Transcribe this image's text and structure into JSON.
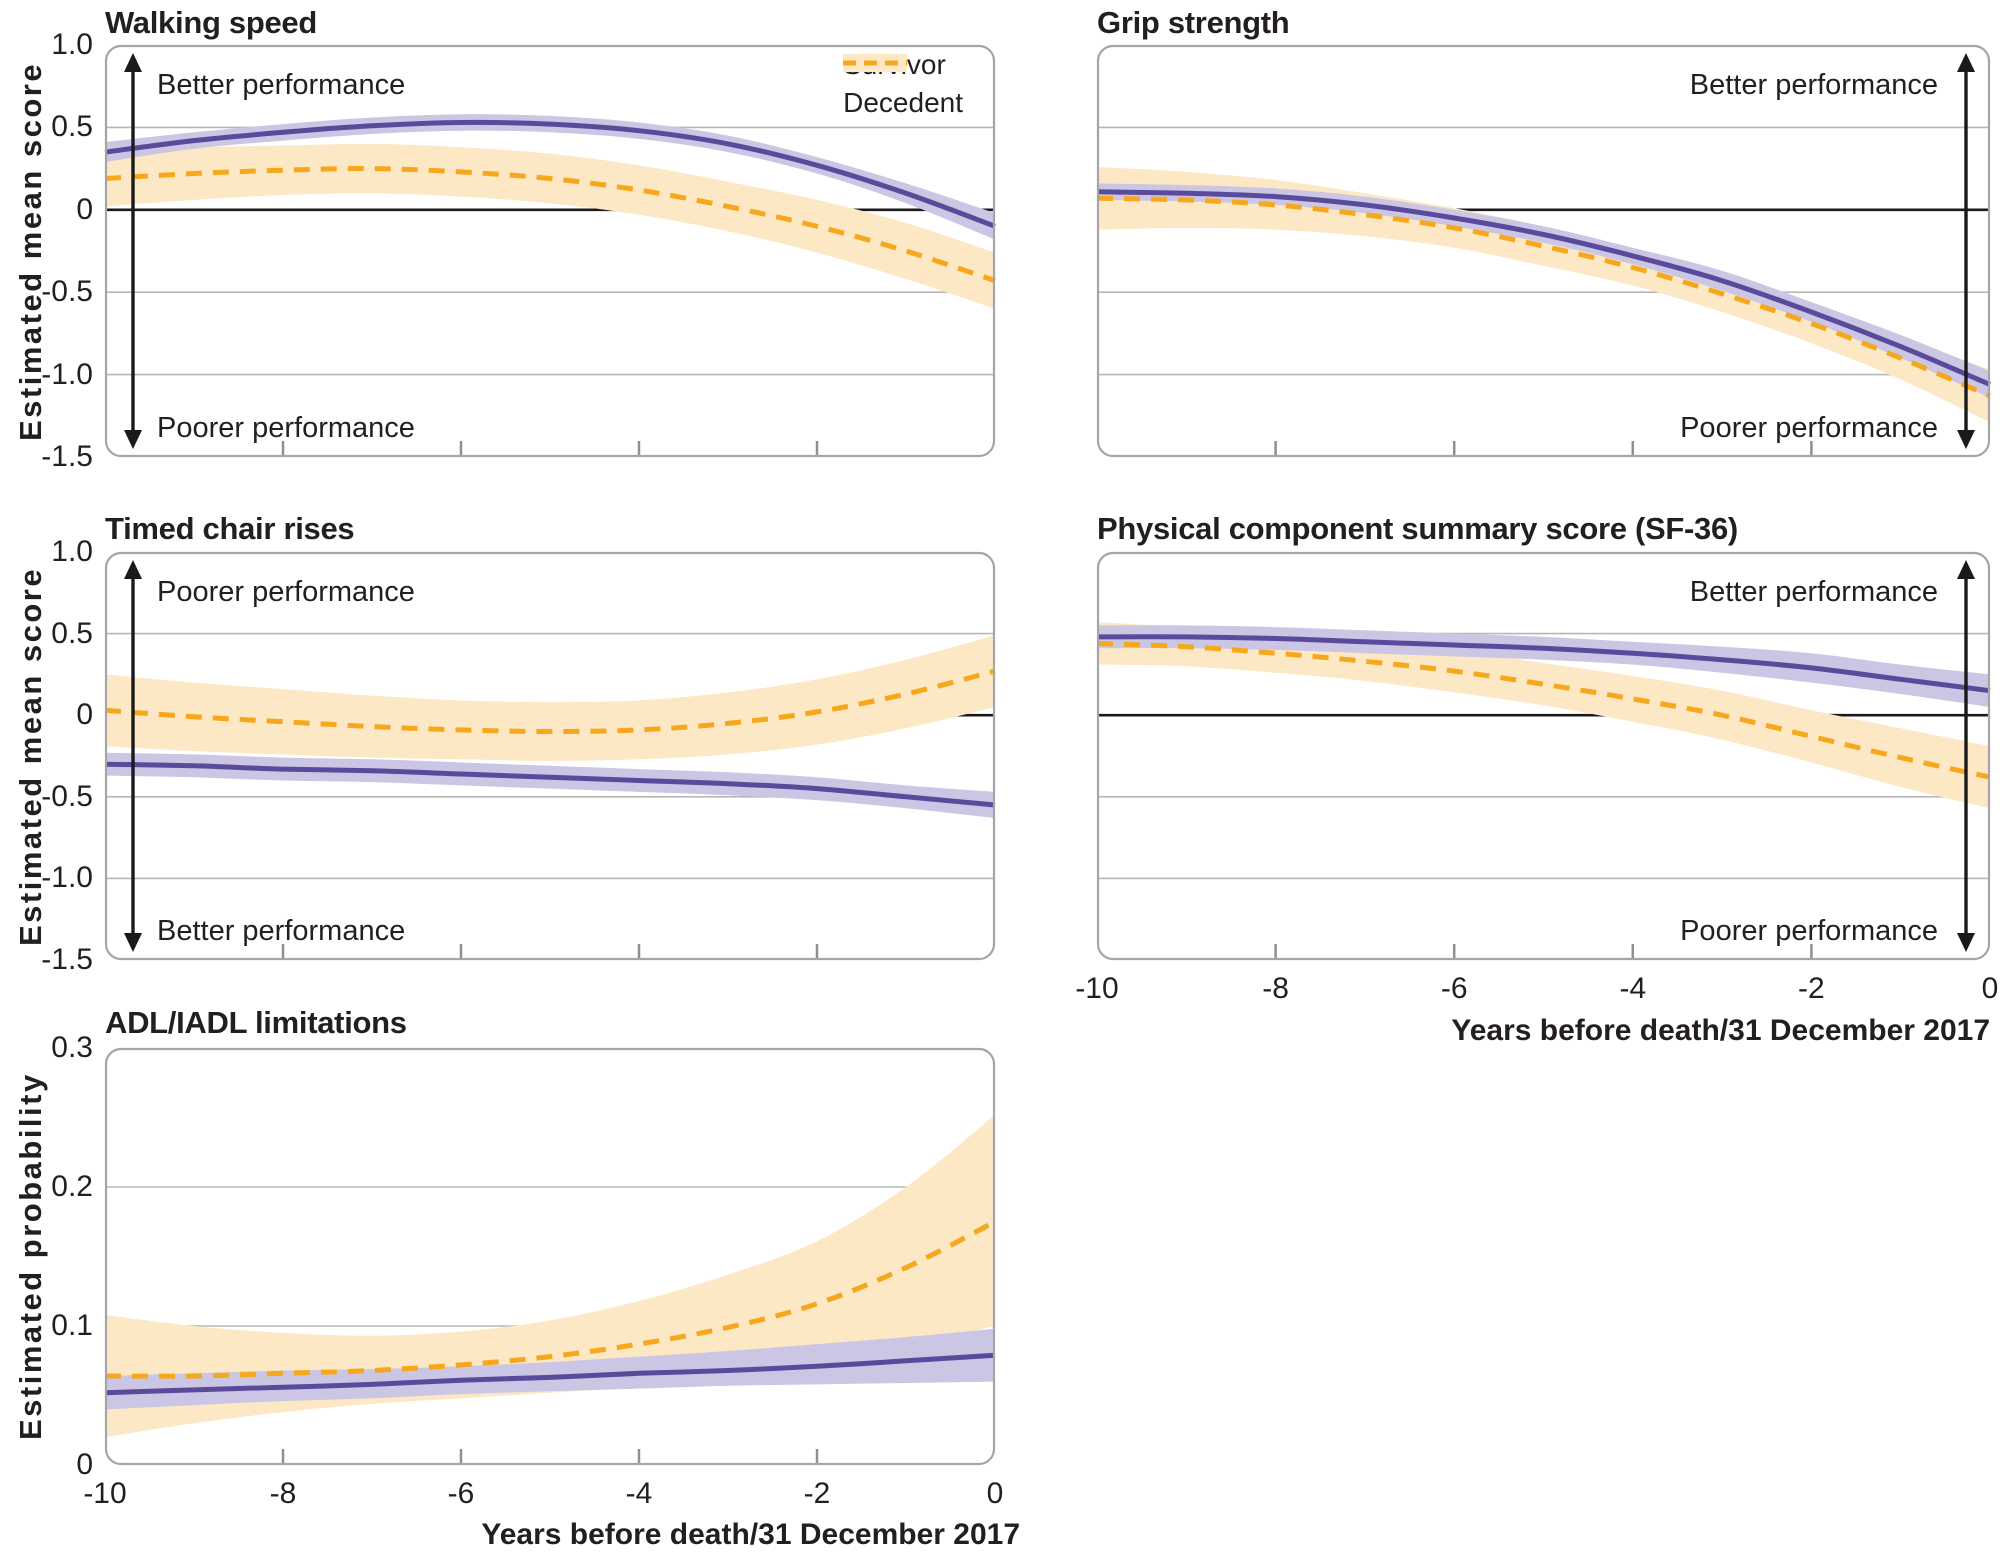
{
  "figure": {
    "x_axis_label": "Years before death/31 December 2017",
    "y_axis_label_mean_score": "Estimated mean score",
    "y_axis_label_probability": "Estimated probability"
  },
  "legend": {
    "survivor": "Survivor",
    "decedent": "Decedent"
  },
  "colors": {
    "survivor_line": "#5a4a9c",
    "survivor_band": "#cbc6e4",
    "decedent_line": "#f7a71c",
    "decedent_band": "#fce8c5",
    "gridline": "#b7b7b7",
    "zero_line": "#1a1a1a",
    "panel_border": "#a5a5a5",
    "tick": "#8f8f8f",
    "text": "#231f20"
  },
  "chart_data": [
    {
      "id": "walking-speed",
      "type": "line",
      "title": "Walking speed",
      "x": [
        -10,
        -9,
        -8,
        -7,
        -6,
        -5,
        -4,
        -3,
        -2,
        -1,
        0
      ],
      "xlim": [
        -10,
        0
      ],
      "ylim": [
        -1.5,
        1.0
      ],
      "x_ticks": [
        -10,
        -8,
        -6,
        -4,
        -2,
        0
      ],
      "x_tick_labels": [],
      "y_ticks": [
        {
          "v": 1.0,
          "label": "1.0"
        },
        {
          "v": 0.5,
          "label": "0.5"
        },
        {
          "v": 0,
          "label": "0"
        },
        {
          "v": -0.5,
          "label": "-0.5"
        },
        {
          "v": -1.0,
          "label": "-1.0"
        },
        {
          "v": -1.5,
          "label": "-1.5"
        }
      ],
      "y_gridlines": [
        0.5,
        -0.5,
        -1.0
      ],
      "zero_line": true,
      "annotation_top": "Better performance",
      "annotation_bottom": "Poorer performance",
      "arrow_side": "left",
      "series": [
        {
          "name": "Survivor",
          "line": "solid",
          "color_key": "survivor",
          "y": [
            0.35,
            0.42,
            0.47,
            0.51,
            0.53,
            0.52,
            0.48,
            0.4,
            0.27,
            0.1,
            -0.1
          ],
          "lo": [
            0.29,
            0.37,
            0.42,
            0.46,
            0.48,
            0.47,
            0.43,
            0.35,
            0.22,
            0.04,
            -0.18
          ],
          "hi": [
            0.41,
            0.47,
            0.52,
            0.56,
            0.58,
            0.57,
            0.53,
            0.45,
            0.32,
            0.16,
            -0.02
          ]
        },
        {
          "name": "Decedent",
          "line": "dashed",
          "color_key": "decedent",
          "y": [
            0.19,
            0.22,
            0.24,
            0.25,
            0.23,
            0.19,
            0.12,
            0.02,
            -0.1,
            -0.25,
            -0.43
          ],
          "lo": [
            0.02,
            0.06,
            0.09,
            0.1,
            0.08,
            0.04,
            -0.03,
            -0.13,
            -0.26,
            -0.42,
            -0.6
          ],
          "hi": [
            0.36,
            0.38,
            0.39,
            0.4,
            0.38,
            0.34,
            0.27,
            0.17,
            0.06,
            -0.08,
            -0.26
          ]
        }
      ]
    },
    {
      "id": "grip-strength",
      "type": "line",
      "title": "Grip strength",
      "x": [
        -10,
        -9,
        -8,
        -7,
        -6,
        -5,
        -4,
        -3,
        -2,
        -1,
        0
      ],
      "xlim": [
        -10,
        0
      ],
      "ylim": [
        -1.5,
        1.0
      ],
      "x_ticks": [
        -10,
        -8,
        -6,
        -4,
        -2,
        0
      ],
      "x_tick_labels": [],
      "y_ticks": [],
      "y_gridlines": [
        0.5,
        -0.5,
        -1.0
      ],
      "zero_line": true,
      "annotation_top": "Better performance",
      "annotation_bottom": "Poorer performance",
      "arrow_side": "right",
      "series": [
        {
          "name": "Survivor",
          "line": "solid",
          "color_key": "survivor",
          "y": [
            0.11,
            0.1,
            0.08,
            0.03,
            -0.05,
            -0.15,
            -0.28,
            -0.43,
            -0.62,
            -0.83,
            -1.06
          ],
          "lo": [
            0.06,
            0.05,
            0.03,
            -0.02,
            -0.1,
            -0.2,
            -0.33,
            -0.49,
            -0.68,
            -0.9,
            -1.14
          ],
          "hi": [
            0.16,
            0.15,
            0.13,
            0.08,
            0.0,
            -0.1,
            -0.23,
            -0.37,
            -0.56,
            -0.76,
            -0.98
          ]
        },
        {
          "name": "Decedent",
          "line": "dashed",
          "color_key": "decedent",
          "y": [
            0.07,
            0.06,
            0.03,
            -0.03,
            -0.11,
            -0.22,
            -0.35,
            -0.51,
            -0.69,
            -0.9,
            -1.13
          ],
          "lo": [
            -0.12,
            -0.11,
            -0.12,
            -0.16,
            -0.23,
            -0.34,
            -0.46,
            -0.62,
            -0.81,
            -1.03,
            -1.29
          ],
          "hi": [
            0.26,
            0.23,
            0.18,
            0.1,
            0.01,
            -0.1,
            -0.24,
            -0.4,
            -0.57,
            -0.77,
            -0.97
          ]
        }
      ]
    },
    {
      "id": "timed-chair-rises",
      "type": "line",
      "title": "Timed chair rises",
      "x": [
        -10,
        -9,
        -8,
        -7,
        -6,
        -5,
        -4,
        -3,
        -2,
        -1,
        0
      ],
      "xlim": [
        -10,
        0
      ],
      "ylim": [
        -1.5,
        1.0
      ],
      "x_ticks": [
        -10,
        -8,
        -6,
        -4,
        -2,
        0
      ],
      "x_tick_labels": [],
      "y_ticks": [
        {
          "v": 1.0,
          "label": "1.0"
        },
        {
          "v": 0.5,
          "label": "0.5"
        },
        {
          "v": 0,
          "label": "0"
        },
        {
          "v": -0.5,
          "label": "-0.5"
        },
        {
          "v": -1.0,
          "label": "-1.0"
        },
        {
          "v": -1.5,
          "label": "-1.5"
        }
      ],
      "y_gridlines": [
        0.5,
        -0.5,
        -1.0
      ],
      "zero_line": true,
      "annotation_top": "Poorer performance",
      "annotation_bottom": "Better performance",
      "arrow_side": "left",
      "series": [
        {
          "name": "Survivor",
          "line": "solid",
          "color_key": "survivor",
          "y": [
            -0.3,
            -0.31,
            -0.33,
            -0.34,
            -0.36,
            -0.38,
            -0.4,
            -0.42,
            -0.45,
            -0.5,
            -0.55
          ],
          "lo": [
            -0.37,
            -0.38,
            -0.4,
            -0.41,
            -0.43,
            -0.45,
            -0.47,
            -0.49,
            -0.52,
            -0.57,
            -0.63
          ],
          "hi": [
            -0.23,
            -0.24,
            -0.26,
            -0.27,
            -0.29,
            -0.31,
            -0.33,
            -0.35,
            -0.38,
            -0.43,
            -0.47
          ]
        },
        {
          "name": "Decedent",
          "line": "dashed",
          "color_key": "decedent",
          "y": [
            0.03,
            -0.01,
            -0.04,
            -0.07,
            -0.09,
            -0.1,
            -0.09,
            -0.05,
            0.02,
            0.13,
            0.27
          ],
          "lo": [
            -0.19,
            -0.22,
            -0.24,
            -0.26,
            -0.27,
            -0.28,
            -0.27,
            -0.24,
            -0.18,
            -0.08,
            0.05
          ],
          "hi": [
            0.25,
            0.2,
            0.16,
            0.12,
            0.09,
            0.08,
            0.09,
            0.14,
            0.22,
            0.34,
            0.49
          ]
        }
      ]
    },
    {
      "id": "physical-component-summary",
      "type": "line",
      "title": "Physical component summary score (SF-36)",
      "x": [
        -10,
        -9,
        -8,
        -7,
        -6,
        -5,
        -4,
        -3,
        -2,
        -1,
        0
      ],
      "xlim": [
        -10,
        0
      ],
      "ylim": [
        -1.5,
        1.0
      ],
      "x_ticks": [
        -10,
        -8,
        -6,
        -4,
        -2,
        0
      ],
      "x_tick_labels": [
        "-10",
        "-8",
        "-6",
        "-4",
        "-2",
        "0"
      ],
      "y_ticks": [],
      "y_gridlines": [
        0.5,
        -0.5,
        -1.0
      ],
      "zero_line": true,
      "annotation_top": "Better performance",
      "annotation_bottom": "Poorer performance",
      "arrow_side": "right",
      "show_x_label": true,
      "series": [
        {
          "name": "Survivor",
          "line": "solid",
          "color_key": "survivor",
          "y": [
            0.48,
            0.48,
            0.47,
            0.45,
            0.43,
            0.41,
            0.38,
            0.34,
            0.29,
            0.22,
            0.15
          ],
          "lo": [
            0.41,
            0.41,
            0.4,
            0.38,
            0.36,
            0.34,
            0.31,
            0.26,
            0.2,
            0.13,
            0.05
          ],
          "hi": [
            0.55,
            0.55,
            0.54,
            0.52,
            0.5,
            0.48,
            0.45,
            0.42,
            0.38,
            0.31,
            0.25
          ]
        },
        {
          "name": "Decedent",
          "line": "dashed",
          "color_key": "decedent",
          "y": [
            0.44,
            0.42,
            0.38,
            0.33,
            0.27,
            0.19,
            0.1,
            0.0,
            -0.13,
            -0.26,
            -0.38
          ],
          "lo": [
            0.31,
            0.3,
            0.26,
            0.21,
            0.14,
            0.06,
            -0.04,
            -0.15,
            -0.29,
            -0.44,
            -0.57
          ],
          "hi": [
            0.57,
            0.54,
            0.5,
            0.45,
            0.4,
            0.32,
            0.24,
            0.15,
            0.03,
            -0.08,
            -0.19
          ]
        }
      ]
    },
    {
      "id": "adl-iadl-limitations",
      "type": "line",
      "title": "ADL/IADL limitations",
      "x": [
        -10,
        -9,
        -8,
        -7,
        -6,
        -5,
        -4,
        -3,
        -2,
        -1,
        0
      ],
      "xlim": [
        -10,
        0
      ],
      "ylim": [
        0,
        0.3
      ],
      "x_ticks": [
        -10,
        -8,
        -6,
        -4,
        -2,
        0
      ],
      "x_tick_labels": [
        "-10",
        "-8",
        "-6",
        "-4",
        "-2",
        "0"
      ],
      "y_ticks": [
        {
          "v": 0.3,
          "label": "0.3"
        },
        {
          "v": 0.2,
          "label": "0.2"
        },
        {
          "v": 0.1,
          "label": "0.1"
        },
        {
          "v": 0,
          "label": "0"
        }
      ],
      "y_gridlines": [
        0.1,
        0.2
      ],
      "zero_line": false,
      "show_x_label": true,
      "series": [
        {
          "name": "Survivor",
          "line": "solid",
          "color_key": "survivor",
          "y": [
            0.052,
            0.054,
            0.056,
            0.058,
            0.061,
            0.063,
            0.066,
            0.068,
            0.071,
            0.075,
            0.079
          ],
          "lo": [
            0.04,
            0.043,
            0.046,
            0.048,
            0.051,
            0.053,
            0.055,
            0.057,
            0.058,
            0.059,
            0.06
          ],
          "hi": [
            0.064,
            0.066,
            0.068,
            0.069,
            0.071,
            0.074,
            0.078,
            0.082,
            0.087,
            0.092,
            0.098
          ]
        },
        {
          "name": "Decedent",
          "line": "dashed",
          "color_key": "decedent",
          "y": [
            0.064,
            0.064,
            0.066,
            0.068,
            0.072,
            0.078,
            0.087,
            0.099,
            0.116,
            0.142,
            0.175
          ],
          "lo": [
            0.02,
            0.03,
            0.038,
            0.044,
            0.048,
            0.052,
            0.056,
            0.062,
            0.072,
            0.085,
            0.1
          ],
          "hi": [
            0.108,
            0.1,
            0.095,
            0.093,
            0.096,
            0.104,
            0.118,
            0.137,
            0.161,
            0.2,
            0.252
          ]
        }
      ]
    }
  ]
}
